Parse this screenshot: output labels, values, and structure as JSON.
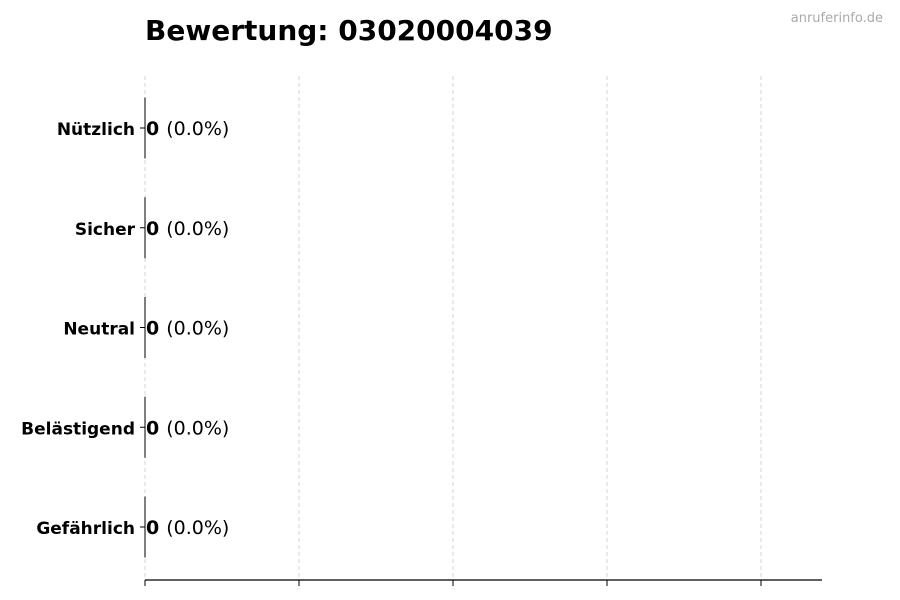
{
  "watermark": "anruferinfo.de",
  "chart_data": {
    "type": "bar",
    "orientation": "horizontal",
    "title": "Bewertung: 03020004039",
    "categories": [
      "Nützlich",
      "Sicher",
      "Neutral",
      "Belästigend",
      "Gefährlich"
    ],
    "values": [
      0,
      0,
      0,
      0,
      0
    ],
    "value_labels": [
      "0",
      "0",
      "0",
      "0",
      "0"
    ],
    "percent_labels": [
      "(0.0%)",
      "(0.0%)",
      "(0.0%)",
      "(0.0%)",
      "(0.0%)"
    ],
    "xlabel": "",
    "ylabel": "",
    "x_tick_labels_shown": false,
    "grid": "x, dashed",
    "colors": {
      "bar_edge": "#000000",
      "grid": "#cccccc",
      "watermark": "#aaaaaa"
    }
  }
}
